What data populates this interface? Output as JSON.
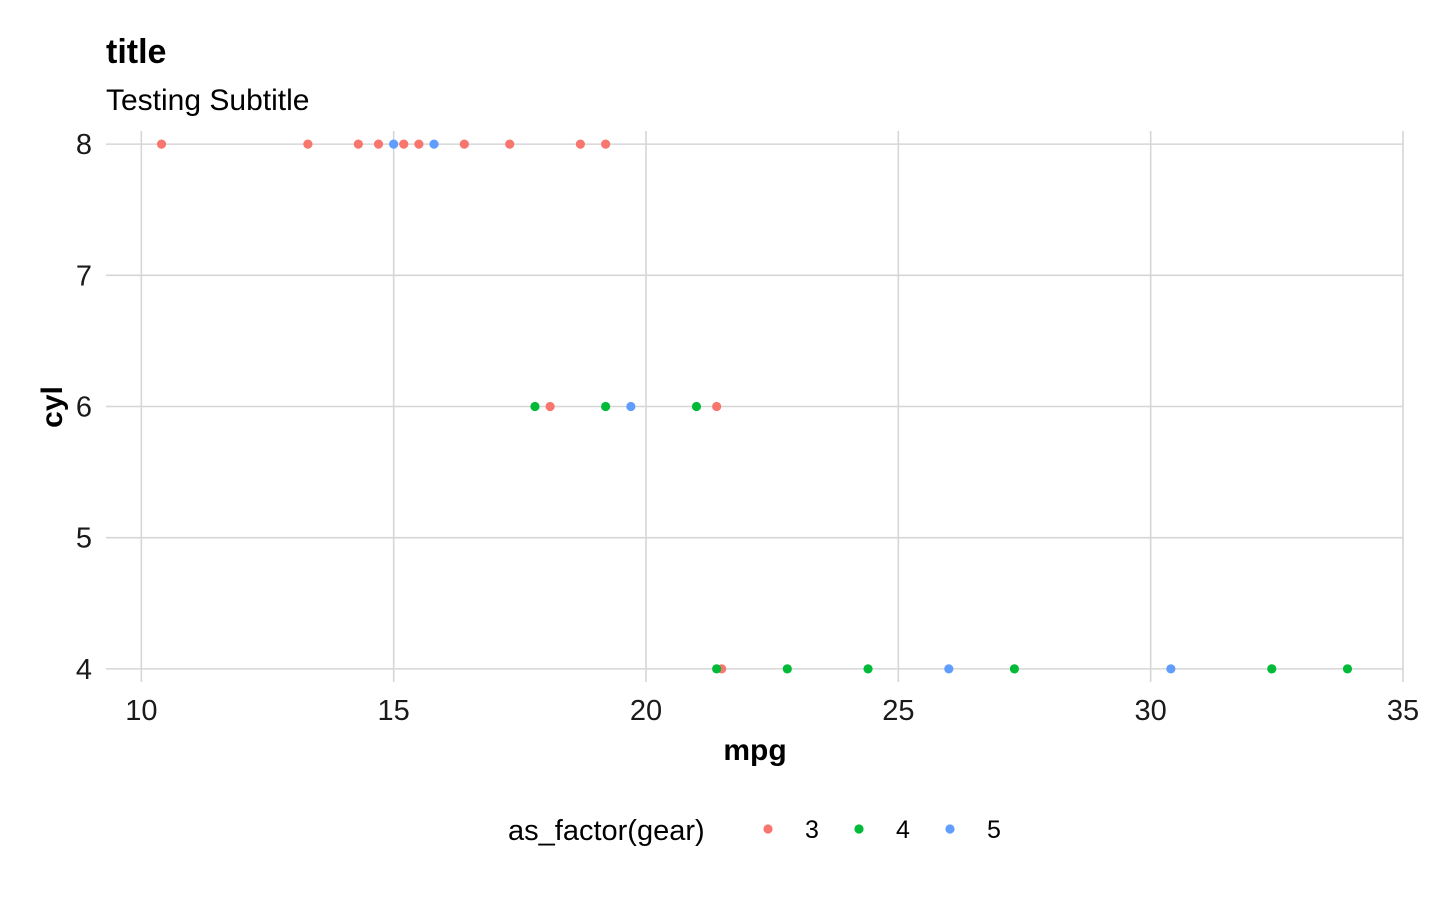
{
  "chart_data": {
    "type": "scatter",
    "title": "title",
    "subtitle": "Testing Subtitle",
    "xlabel": "mpg",
    "ylabel": "cyl",
    "xlim": [
      9.3,
      35
    ],
    "ylim": [
      3.9,
      8.1
    ],
    "x_ticks": [
      10,
      15,
      20,
      25,
      30,
      35
    ],
    "y_ticks": [
      4,
      5,
      6,
      7,
      8
    ],
    "grid": true,
    "legend": {
      "title": "as_factor(gear)",
      "position": "bottom",
      "entries": [
        "3",
        "4",
        "5"
      ]
    },
    "colors": {
      "3": "#F8766D",
      "4": "#00BA38",
      "5": "#619CFF"
    },
    "series": [
      {
        "name": "3",
        "points": [
          {
            "x": 10.4,
            "y": 8
          },
          {
            "x": 13.3,
            "y": 8
          },
          {
            "x": 14.3,
            "y": 8
          },
          {
            "x": 14.7,
            "y": 8
          },
          {
            "x": 15.2,
            "y": 8
          },
          {
            "x": 15.5,
            "y": 8
          },
          {
            "x": 16.4,
            "y": 8
          },
          {
            "x": 17.3,
            "y": 8
          },
          {
            "x": 18.7,
            "y": 8
          },
          {
            "x": 19.2,
            "y": 8
          },
          {
            "x": 18.1,
            "y": 6
          },
          {
            "x": 21.4,
            "y": 6
          },
          {
            "x": 21.5,
            "y": 4
          }
        ]
      },
      {
        "name": "4",
        "points": [
          {
            "x": 17.8,
            "y": 6
          },
          {
            "x": 19.2,
            "y": 6
          },
          {
            "x": 21.0,
            "y": 6
          },
          {
            "x": 21.4,
            "y": 4
          },
          {
            "x": 22.8,
            "y": 4
          },
          {
            "x": 24.4,
            "y": 4
          },
          {
            "x": 27.3,
            "y": 4
          },
          {
            "x": 32.4,
            "y": 4
          },
          {
            "x": 33.9,
            "y": 4
          }
        ]
      },
      {
        "name": "5",
        "points": [
          {
            "x": 15.0,
            "y": 8
          },
          {
            "x": 15.8,
            "y": 8
          },
          {
            "x": 19.7,
            "y": 6
          },
          {
            "x": 26.0,
            "y": 4
          },
          {
            "x": 30.4,
            "y": 4
          }
        ]
      }
    ]
  }
}
